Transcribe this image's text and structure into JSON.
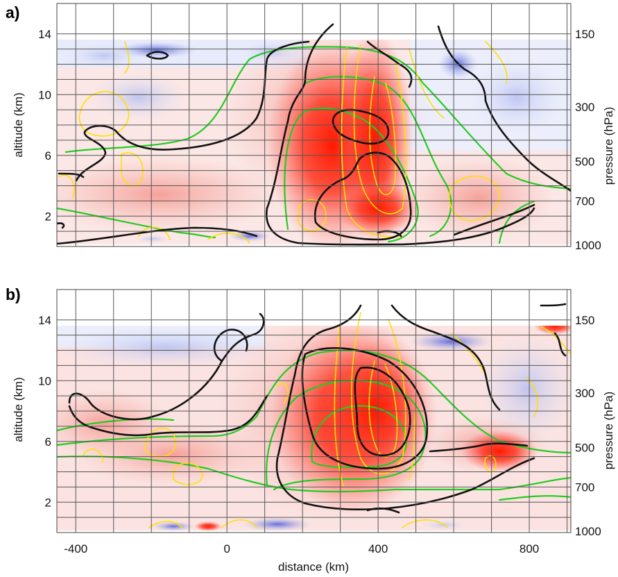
{
  "chart_data": [
    {
      "panel_label": "a)",
      "type": "heatmap",
      "xlabel": "",
      "ylabel": "altitude (km)",
      "right_axis_label": "pressure (hPa)",
      "xlim": [
        -450,
        910
      ],
      "ylim": [
        0,
        16
      ],
      "x_ticks": [
        -400,
        0,
        400,
        800
      ],
      "x_tick_labels": [
        "",
        "",
        "",
        ""
      ],
      "y_ticks": [
        2,
        6,
        10,
        14
      ],
      "y_tick_labels": [
        "2",
        "6",
        "10",
        "14"
      ],
      "pressure_ticks": [
        {
          "label": "150",
          "altitude": 14
        },
        {
          "label": "300",
          "altitude": 9.2
        },
        {
          "label": "500",
          "altitude": 5.6
        },
        {
          "label": "700",
          "altitude": 3.0
        },
        {
          "label": "1000",
          "altitude": 0.1
        }
      ],
      "grid": true,
      "colors": {
        "positive": "#e8000b",
        "negative": "#1f3fd0",
        "green_contours": "#00cc00",
        "yellow_contours": "#ffe100",
        "black_contours": "#111111"
      }
    },
    {
      "panel_label": "b)",
      "type": "heatmap",
      "xlabel": "distance (km)",
      "ylabel": "altitude (km)",
      "right_axis_label": "pressure (hPa)",
      "xlim": [
        -450,
        910
      ],
      "ylim": [
        0,
        16
      ],
      "x_ticks": [
        -400,
        0,
        400,
        800
      ],
      "x_tick_labels": [
        "-400",
        "0",
        "400",
        "800"
      ],
      "y_ticks": [
        2,
        6,
        10,
        14
      ],
      "y_tick_labels": [
        "2",
        "6",
        "10",
        "14"
      ],
      "pressure_ticks": [
        {
          "label": "150",
          "altitude": 14
        },
        {
          "label": "300",
          "altitude": 9.2
        },
        {
          "label": "500",
          "altitude": 5.6
        },
        {
          "label": "700",
          "altitude": 3.0
        },
        {
          "label": "1000",
          "altitude": 0.1
        }
      ],
      "grid": true,
      "colors": {
        "positive": "#e8000b",
        "negative": "#1f3fd0",
        "green_contours": "#00cc00",
        "yellow_contours": "#ffe100",
        "black_contours": "#111111"
      }
    }
  ]
}
